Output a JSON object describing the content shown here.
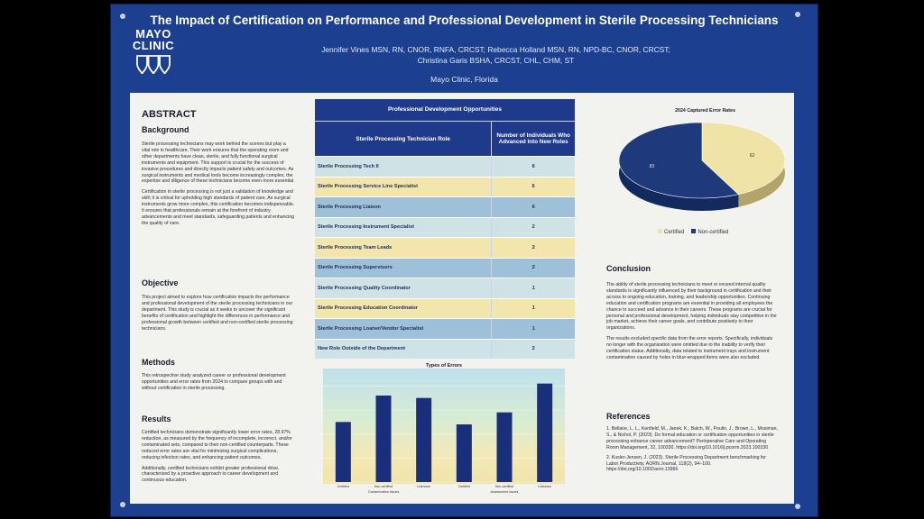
{
  "header": {
    "title": "The Impact of Certification on Performance and Professional Development in Sterile Processing Technicians",
    "authors_line1": "Jennifer Vines MSN, RN, CNOR, RNFA, CRCST; Rebecca Holland MSN, RN, NPD-BC, CNOR, CRCST;",
    "authors_line2": "Christina Garis BSHA, CRCST, CHL, CHM, ST",
    "affiliation": "Mayo Clinic, Florida",
    "logo_line1": "MAYO",
    "logo_line2": "CLINIC"
  },
  "abstract": {
    "heading": "ABSTRACT",
    "background_heading": "Background",
    "background_p1": "Sterile processing technicians may work behind the scenes but play a vital role in healthcare. Their work ensures that the operating room and other departments have clean, sterile, and fully functional surgical instruments and equipment. This support is crucial for the success of invasive procedures and directly impacts patient safety and outcomes. As surgical instruments and medical tools become increasingly complex, the expertise and diligence of these technicians become even more essential.",
    "background_p2": "Certification in sterile processing is not just a validation of knowledge and skill; it is critical for upholding high standards of patient care. As surgical instruments grow more complex, this certification becomes indispensable. It ensures that professionals remain at the forefront of industry advancements and meet standards, safeguarding patients and enhancing the quality of care.",
    "objective_heading": "Objective",
    "objective_p": "This project aimed to explore how certification impacts the performance and professional development of the sterile processing technicians in our department. This study is crucial as it seeks to uncover the significant benefits of certification and highlight the differences in performance and professional growth between certified and non-certified sterile processing technicians.",
    "methods_heading": "Methods",
    "methods_p": "This retrospective study analyzed career or professional development opportunities and error rates from 2024 to compare groups with and without certification in sterile processing.",
    "results_heading": "Results",
    "results_p1": "Certified technicians demonstrate significantly lower error rates, 28.97% reduction, as measured by the frequency of incomplete, incorrect, and/or contaminated sets, compared to their non-certified counterparts. These reduced error rates are vital for minimizing surgical complications, reducing infection rates, and enhancing patient outcomes.",
    "results_p2": "Additionally, certified technicians exhibit greater professional drive, characterized by a proactive approach to career development and continuous education."
  },
  "table": {
    "title": "Professional Development Opportunities",
    "col1": "Sterile Processing Technician Role",
    "col2": "Number of Individuals Who Advanced Into New Roles",
    "rows": [
      {
        "role": "Sterile Processing Tech II",
        "count": "6"
      },
      {
        "role": "Sterile Processing Service Line Specialist",
        "count": "6"
      },
      {
        "role": "Sterile Processing Liaison",
        "count": "6"
      },
      {
        "role": "Sterile Processing Instrument Specialist",
        "count": "2"
      },
      {
        "role": "Sterile Processing Team Leads",
        "count": "2"
      },
      {
        "role": "Sterile Processing Supervisors",
        "count": "2"
      },
      {
        "role": "Sterile Processing Quality Coordinator",
        "count": "1"
      },
      {
        "role": "Sterile Processing Education Coordinator",
        "count": "1"
      },
      {
        "role": "Sterile Processing Loaner/Vendor Specialist",
        "count": "1"
      },
      {
        "role": "New Role Outside of the Department",
        "count": "2"
      }
    ]
  },
  "chart_data": [
    {
      "type": "pie",
      "title": "2024 Captured Error Rates",
      "labels": [
        "Certified",
        "Non-certified"
      ],
      "values": [
        62,
        83
      ],
      "colors": [
        "#efe3a6",
        "#1f3a7a"
      ],
      "legend": "bottom"
    },
    {
      "type": "bar",
      "title": "Types of Errors",
      "categories": [
        "Certified",
        "Non-certified",
        "Unknown",
        "Certified",
        "Non-certified",
        "Unknown"
      ],
      "groups": [
        "Contamination Issues",
        "Assessment Issues"
      ],
      "values": [
        25,
        36,
        35,
        24,
        29,
        41
      ],
      "ylim": [
        0,
        45
      ],
      "grid": true,
      "bar_color": "#1a2f7a"
    }
  ],
  "conclusion": {
    "heading": "Conclusion",
    "p1": "The ability of sterile processing technicians to meet or exceed internal quality standards is significantly influenced by their background in certification and their access to ongoing education, training, and leadership opportunities. Continuing education and certification programs are essential in providing all employees the chance to succeed and advance in their careers. These programs are crucial for personal and professional development, helping individuals stay competitive in the job market, achieve their career goals, and contribute positively to their organizations.",
    "p2": "The results excluded specific data from the error reports. Specifically, individuals no longer with the organization were omitted due to the inability to verify their certification status. Additionally, data related to instrument trays and instrument contamination caused by holes in blue-wrapped items were also excluded."
  },
  "references": {
    "heading": "References",
    "r1": "1. Bellaire, L. L., Kenfield, M., Janek, K., Balch, W., Poulin, J., Brown, L., Mosiman, S., & Nichol, P. (2023). Do formal education or certification opportunities in sterile processing enhance career advancement? Perioperative Care and Operating Room Management, 32, 100330. https://doi.org/10.1016/j.pcorm.2023.100330",
    "r2": "2. Kusler-Jensen, J. (2023). Sterile Processing Department benchmarking for Labor Productivity. AORN Journal, 118(2), 94–100. https://doi.org/10.1002/aorn.13966"
  }
}
